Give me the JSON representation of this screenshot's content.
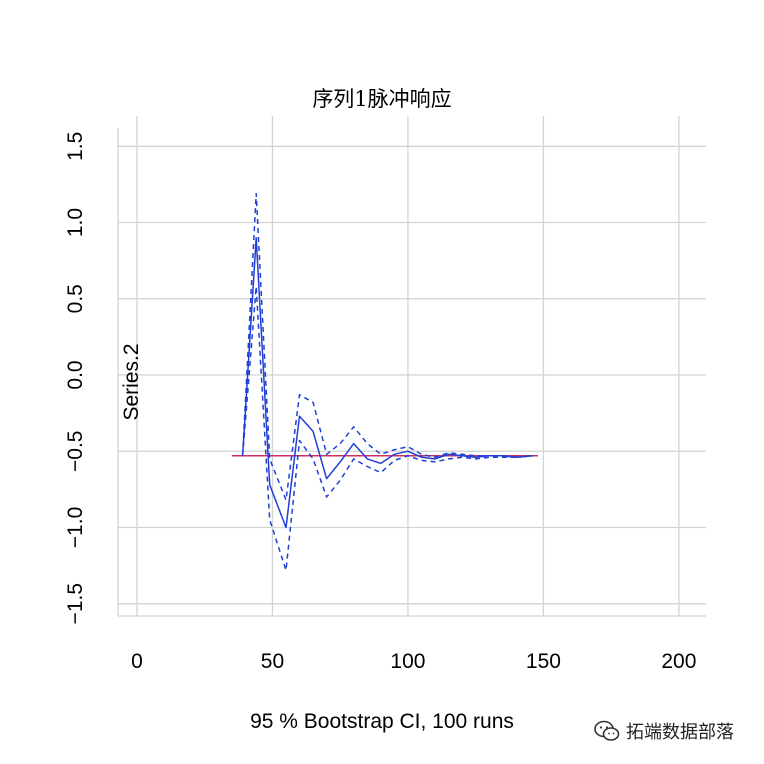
{
  "chart_data": {
    "type": "line",
    "title": "序列1脉冲响应",
    "xlabel": "95 % Bootstrap CI,  100 runs",
    "ylabel": "Series.2",
    "xlim": [
      -7,
      210
    ],
    "ylim": [
      -1.62,
      1.62
    ],
    "x_ticks": [
      "0",
      "50",
      "100",
      "150",
      "200"
    ],
    "y_ticks": [
      "−1.5",
      "−1.0",
      "−0.5",
      "0.0",
      "0.5",
      "1.0",
      "1.5"
    ],
    "x_tick_values": [
      0,
      50,
      100,
      150,
      200
    ],
    "y_tick_values": [
      -1.5,
      -1.0,
      -0.5,
      0.0,
      0.5,
      1.0,
      1.5
    ],
    "grid": true,
    "zero_line": {
      "x": [
        35,
        148
      ],
      "y": -0.53,
      "color": "#d03060"
    },
    "series": [
      {
        "role": "estimate",
        "style": "solid",
        "color": "#1f3fd6",
        "x": [
          39,
          44,
          49,
          55,
          60,
          65,
          70,
          75,
          80,
          85,
          90,
          95,
          100,
          105,
          110,
          115,
          120,
          125,
          130,
          135,
          140,
          146
        ],
        "y": [
          -0.53,
          0.9,
          -0.72,
          -1.0,
          -0.27,
          -0.37,
          -0.68,
          -0.57,
          -0.45,
          -0.55,
          -0.58,
          -0.52,
          -0.5,
          -0.54,
          -0.55,
          -0.52,
          -0.53,
          -0.54,
          -0.53,
          -0.53,
          -0.54,
          -0.53
        ]
      },
      {
        "role": "upper",
        "style": "dashed",
        "color": "#1f3fd6",
        "x": [
          39,
          44,
          49,
          55,
          60,
          65,
          70,
          75,
          80,
          85,
          90,
          95,
          100,
          105,
          110,
          115,
          120,
          125,
          130,
          135,
          140,
          146
        ],
        "y": [
          -0.53,
          1.19,
          -0.55,
          -0.82,
          -0.13,
          -0.18,
          -0.52,
          -0.45,
          -0.34,
          -0.45,
          -0.52,
          -0.49,
          -0.47,
          -0.52,
          -0.54,
          -0.51,
          -0.52,
          -0.53,
          -0.53,
          -0.53,
          -0.54,
          -0.53
        ]
      },
      {
        "role": "lower",
        "style": "dashed",
        "color": "#1f3fd6",
        "x": [
          39,
          44,
          49,
          55,
          60,
          65,
          70,
          75,
          80,
          85,
          90,
          95,
          100,
          105,
          110,
          115,
          120,
          125,
          130,
          135,
          140,
          146
        ],
        "y": [
          -0.53,
          0.58,
          -0.95,
          -1.28,
          -0.43,
          -0.55,
          -0.8,
          -0.69,
          -0.55,
          -0.6,
          -0.64,
          -0.56,
          -0.53,
          -0.56,
          -0.57,
          -0.55,
          -0.54,
          -0.55,
          -0.54,
          -0.54,
          -0.54,
          -0.53
        ]
      }
    ]
  },
  "watermark": {
    "text": "拓端数据部落",
    "icon": "wechat-icon"
  }
}
